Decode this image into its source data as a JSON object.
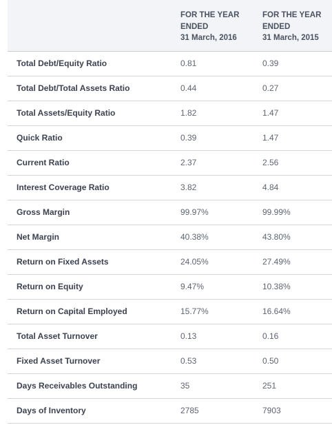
{
  "header": {
    "col1": [
      "FOR THE YEAR",
      "ENDED",
      "31 March, 2016"
    ],
    "col2": [
      "FOR THE YEAR",
      "ENDED",
      "31 March, 2015"
    ]
  },
  "rows": [
    {
      "label": "Total Debt/Equity Ratio",
      "v2016": "0.81",
      "v2015": "0.39"
    },
    {
      "label": "Total Debt/Total Assets Ratio",
      "v2016": "0.44",
      "v2015": "0.27"
    },
    {
      "label": "Total Assets/Equity Ratio",
      "v2016": "1.82",
      "v2015": "1.47"
    },
    {
      "label": "Quick Ratio",
      "v2016": "0.39",
      "v2015": "1.47"
    },
    {
      "label": "Current Ratio",
      "v2016": "2.37",
      "v2015": "2.56"
    },
    {
      "label": "Interest Coverage Ratio",
      "v2016": "3.82",
      "v2015": "4.84"
    },
    {
      "label": "Gross Margin",
      "v2016": "99.97%",
      "v2015": "99.99%"
    },
    {
      "label": "Net Margin",
      "v2016": "40.38%",
      "v2015": "43.80%"
    },
    {
      "label": "Return on Fixed Assets",
      "v2016": "24.05%",
      "v2015": "27.49%"
    },
    {
      "label": "Return on Equity",
      "v2016": "9.47%",
      "v2015": "10.38%"
    },
    {
      "label": "Return on Capital Employed",
      "v2016": "15.77%",
      "v2015": "16.64%"
    },
    {
      "label": "Total Asset Turnover",
      "v2016": "0.13",
      "v2015": "0.16"
    },
    {
      "label": "Fixed Asset Turnover",
      "v2016": "0.53",
      "v2015": "0.50"
    },
    {
      "label": "Days Receivables Outstanding",
      "v2016": "35",
      "v2015": "251"
    },
    {
      "label": "Days of Inventory",
      "v2016": "2785",
      "v2015": "7903"
    }
  ]
}
